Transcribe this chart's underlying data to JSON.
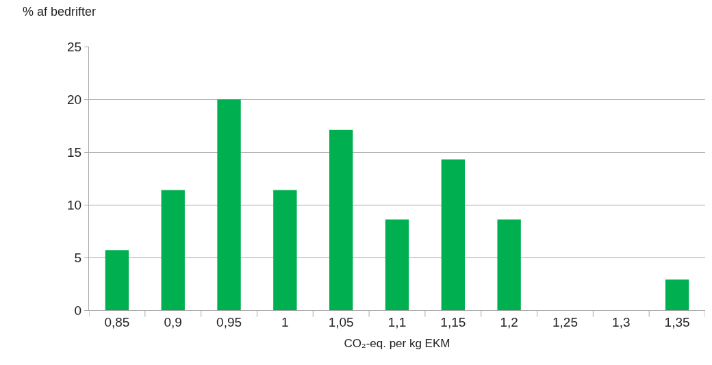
{
  "chart_data": {
    "type": "bar",
    "ylabel": "% af bedrifter",
    "xlabel": "CO₂-eq. per kg EKM",
    "categories": [
      "0,85",
      "0,9",
      "0,95",
      "1",
      "1,05",
      "1,1",
      "1,15",
      "1,2",
      "1,25",
      "1,3",
      "1,35"
    ],
    "values": [
      5.7,
      11.4,
      20,
      11.4,
      17.1,
      8.6,
      14.3,
      8.6,
      0,
      0,
      2.9
    ],
    "color": "#00b050",
    "ylim": [
      0,
      25
    ],
    "yticks": [
      0,
      5,
      10,
      15,
      20,
      25
    ],
    "grid": "y",
    "legend": false
  }
}
